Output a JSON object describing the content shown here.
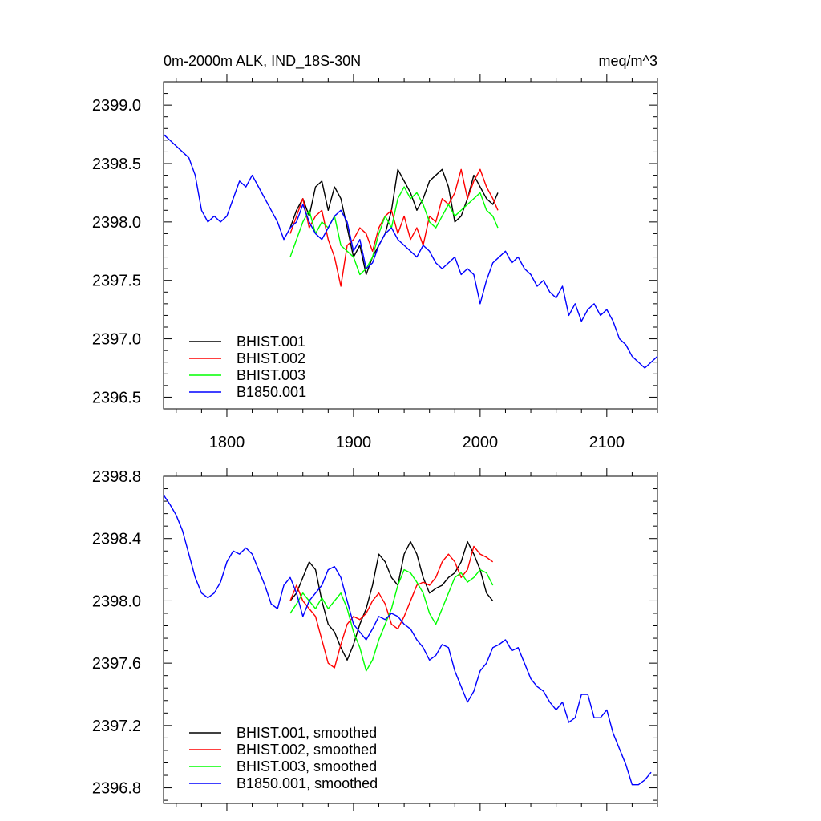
{
  "chart_data": [
    {
      "type": "line",
      "title": "0m-2000m ALK, IND_18S-30N",
      "units": "meq/m^3",
      "xlim": [
        1750,
        2140
      ],
      "ylim": [
        2396.4,
        2399.2
      ],
      "xticks": [
        1800,
        1900,
        2000,
        2100
      ],
      "xtick_labels": [
        "1800",
        "1900",
        "2000",
        "2100"
      ],
      "yticks": [
        2396.5,
        2397.0,
        2397.5,
        2398.0,
        2398.5,
        2399.0
      ],
      "ytick_labels": [
        "2396.5",
        "2397.0",
        "2397.5",
        "2398.0",
        "2398.5",
        "2399.0"
      ],
      "legend_position": "bottom-left",
      "series": [
        {
          "name": "BHIST.001",
          "color": "#000000",
          "x": [
            1850,
            1855,
            1860,
            1865,
            1870,
            1875,
            1880,
            1885,
            1890,
            1895,
            1900,
            1905,
            1910,
            1915,
            1920,
            1925,
            1930,
            1935,
            1940,
            1945,
            1950,
            1955,
            1960,
            1965,
            1970,
            1975,
            1980,
            1985,
            1990,
            1995,
            2000,
            2005,
            2010,
            2014
          ],
          "y": [
            2397.95,
            2398.1,
            2398.2,
            2398.05,
            2398.3,
            2398.35,
            2398.1,
            2398.3,
            2398.2,
            2397.95,
            2397.7,
            2397.8,
            2397.55,
            2397.7,
            2397.8,
            2397.9,
            2398.1,
            2398.45,
            2398.35,
            2398.25,
            2398.1,
            2398.2,
            2398.35,
            2398.4,
            2398.45,
            2398.3,
            2398.0,
            2398.05,
            2398.2,
            2398.4,
            2398.3,
            2398.2,
            2398.15,
            2398.25
          ]
        },
        {
          "name": "BHIST.002",
          "color": "#ff0000",
          "x": [
            1850,
            1855,
            1860,
            1865,
            1870,
            1875,
            1880,
            1885,
            1890,
            1895,
            1900,
            1905,
            1910,
            1915,
            1920,
            1925,
            1930,
            1935,
            1940,
            1945,
            1950,
            1955,
            1960,
            1965,
            1970,
            1975,
            1980,
            1985,
            1990,
            1995,
            2000,
            2005,
            2010,
            2014
          ],
          "y": [
            2397.9,
            2398.05,
            2398.2,
            2397.95,
            2398.05,
            2398.1,
            2397.85,
            2397.7,
            2397.45,
            2397.8,
            2397.85,
            2397.95,
            2397.9,
            2397.75,
            2397.95,
            2398.05,
            2398.1,
            2397.9,
            2398.05,
            2397.85,
            2397.95,
            2397.8,
            2398.05,
            2398.0,
            2398.2,
            2398.15,
            2398.25,
            2398.45,
            2398.2,
            2398.35,
            2398.45,
            2398.3,
            2398.2,
            2398.1
          ]
        },
        {
          "name": "BHIST.003",
          "color": "#00ff00",
          "x": [
            1850,
            1855,
            1860,
            1865,
            1870,
            1875,
            1880,
            1885,
            1890,
            1895,
            1900,
            1905,
            1910,
            1915,
            1920,
            1925,
            1930,
            1935,
            1940,
            1945,
            1950,
            1955,
            1960,
            1965,
            1970,
            1975,
            1980,
            1985,
            1990,
            1995,
            2000,
            2005,
            2010,
            2014
          ],
          "y": [
            2397.7,
            2397.85,
            2398.0,
            2398.1,
            2397.9,
            2398.0,
            2397.95,
            2398.05,
            2397.8,
            2397.75,
            2397.7,
            2397.55,
            2397.6,
            2397.7,
            2397.9,
            2398.05,
            2397.95,
            2398.2,
            2398.3,
            2398.2,
            2398.25,
            2398.15,
            2398.0,
            2397.95,
            2398.05,
            2398.15,
            2398.05,
            2398.1,
            2398.15,
            2398.2,
            2398.25,
            2398.1,
            2398.05,
            2397.95
          ]
        },
        {
          "name": "B1850.001",
          "color": "#0000ff",
          "x": [
            1750,
            1755,
            1760,
            1765,
            1770,
            1775,
            1780,
            1785,
            1790,
            1795,
            1800,
            1805,
            1810,
            1815,
            1820,
            1825,
            1830,
            1835,
            1840,
            1845,
            1850,
            1855,
            1860,
            1865,
            1870,
            1875,
            1880,
            1885,
            1890,
            1895,
            1900,
            1905,
            1910,
            1915,
            1920,
            1925,
            1930,
            1935,
            1940,
            1945,
            1950,
            1955,
            1960,
            1965,
            1970,
            1975,
            1980,
            1985,
            1990,
            1995,
            2000,
            2005,
            2010,
            2015,
            2020,
            2025,
            2030,
            2035,
            2040,
            2045,
            2050,
            2055,
            2060,
            2065,
            2070,
            2075,
            2080,
            2085,
            2090,
            2095,
            2100,
            2105,
            2110,
            2115,
            2120,
            2125,
            2130,
            2135,
            2140
          ],
          "y": [
            2398.75,
            2398.7,
            2398.65,
            2398.6,
            2398.55,
            2398.4,
            2398.1,
            2398.0,
            2398.05,
            2398.0,
            2398.05,
            2398.2,
            2398.35,
            2398.3,
            2398.4,
            2398.3,
            2398.2,
            2398.1,
            2398.0,
            2397.85,
            2397.95,
            2398.0,
            2398.15,
            2398.0,
            2397.9,
            2397.85,
            2397.95,
            2398.05,
            2398.1,
            2398.0,
            2397.75,
            2397.85,
            2397.6,
            2397.65,
            2397.8,
            2397.9,
            2397.95,
            2397.85,
            2397.8,
            2397.75,
            2397.7,
            2397.8,
            2397.75,
            2397.65,
            2397.6,
            2397.65,
            2397.7,
            2397.55,
            2397.6,
            2397.55,
            2397.3,
            2397.5,
            2397.65,
            2397.7,
            2397.75,
            2397.65,
            2397.7,
            2397.6,
            2397.55,
            2397.45,
            2397.5,
            2397.4,
            2397.35,
            2397.45,
            2397.2,
            2397.3,
            2397.15,
            2397.25,
            2397.3,
            2397.2,
            2397.25,
            2397.15,
            2397.0,
            2396.95,
            2396.85,
            2396.8,
            2396.75,
            2396.8,
            2396.85
          ]
        }
      ]
    },
    {
      "type": "line",
      "title": "",
      "units": "",
      "xlim": [
        1750,
        2140
      ],
      "ylim": [
        2396.7,
        2398.8
      ],
      "xticks": [
        1800,
        1900,
        2000,
        2100
      ],
      "xtick_labels": [],
      "yticks": [
        2396.8,
        2397.2,
        2397.6,
        2398.0,
        2398.4,
        2398.8
      ],
      "ytick_labels": [
        "2396.8",
        "2397.2",
        "2397.6",
        "2398.0",
        "2398.4",
        "2398.8"
      ],
      "legend_position": "bottom-left",
      "series": [
        {
          "name": "BHIST.001, smoothed",
          "color": "#000000",
          "x": [
            1850,
            1855,
            1860,
            1865,
            1870,
            1875,
            1880,
            1885,
            1890,
            1895,
            1900,
            1905,
            1910,
            1915,
            1920,
            1925,
            1930,
            1935,
            1940,
            1945,
            1950,
            1955,
            1960,
            1965,
            1970,
            1975,
            1980,
            1985,
            1990,
            1995,
            2000,
            2005,
            2010
          ],
          "y": [
            2398.0,
            2398.05,
            2398.15,
            2398.25,
            2398.2,
            2398.0,
            2397.85,
            2397.8,
            2397.7,
            2397.62,
            2397.72,
            2397.85,
            2397.95,
            2398.1,
            2398.3,
            2398.25,
            2398.15,
            2398.1,
            2398.3,
            2398.38,
            2398.3,
            2398.15,
            2398.05,
            2398.08,
            2398.1,
            2398.15,
            2398.18,
            2398.25,
            2398.38,
            2398.3,
            2398.2,
            2398.05,
            2398.0
          ]
        },
        {
          "name": "BHIST.002, smoothed",
          "color": "#ff0000",
          "x": [
            1850,
            1855,
            1860,
            1865,
            1870,
            1875,
            1880,
            1885,
            1890,
            1895,
            1900,
            1905,
            1910,
            1915,
            1920,
            1925,
            1930,
            1935,
            1940,
            1945,
            1950,
            1955,
            1960,
            1965,
            1970,
            1975,
            1980,
            1985,
            1990,
            1995,
            2000,
            2005,
            2010
          ],
          "y": [
            2398.0,
            2398.1,
            2398.0,
            2397.95,
            2397.9,
            2397.75,
            2397.6,
            2397.57,
            2397.72,
            2397.85,
            2397.9,
            2397.88,
            2397.92,
            2398.0,
            2398.05,
            2397.98,
            2397.85,
            2397.82,
            2397.9,
            2398.0,
            2398.1,
            2398.12,
            2398.1,
            2398.15,
            2398.25,
            2398.3,
            2398.25,
            2398.15,
            2398.2,
            2398.35,
            2398.3,
            2398.28,
            2398.25
          ]
        },
        {
          "name": "BHIST.003, smoothed",
          "color": "#00ff00",
          "x": [
            1850,
            1855,
            1860,
            1865,
            1870,
            1875,
            1880,
            1885,
            1890,
            1895,
            1900,
            1905,
            1910,
            1915,
            1920,
            1925,
            1930,
            1935,
            1940,
            1945,
            1950,
            1955,
            1960,
            1965,
            1970,
            1975,
            1980,
            1985,
            1990,
            1995,
            2000,
            2005,
            2010
          ],
          "y": [
            2397.92,
            2397.98,
            2398.05,
            2398.0,
            2397.95,
            2398.02,
            2397.95,
            2398.0,
            2398.05,
            2397.95,
            2397.8,
            2397.7,
            2397.55,
            2397.62,
            2397.75,
            2397.85,
            2397.95,
            2398.1,
            2398.2,
            2398.18,
            2398.12,
            2398.05,
            2397.92,
            2397.85,
            2397.95,
            2398.05,
            2398.15,
            2398.18,
            2398.12,
            2398.15,
            2398.2,
            2398.18,
            2398.1
          ]
        },
        {
          "name": "B1850.001, smoothed",
          "color": "#0000ff",
          "x": [
            1750,
            1755,
            1760,
            1765,
            1770,
            1775,
            1780,
            1785,
            1790,
            1795,
            1800,
            1805,
            1810,
            1815,
            1820,
            1825,
            1830,
            1835,
            1840,
            1845,
            1850,
            1855,
            1860,
            1865,
            1870,
            1875,
            1880,
            1885,
            1890,
            1895,
            1900,
            1905,
            1910,
            1915,
            1920,
            1925,
            1930,
            1935,
            1940,
            1945,
            1950,
            1955,
            1960,
            1965,
            1970,
            1975,
            1980,
            1985,
            1990,
            1995,
            2000,
            2005,
            2010,
            2015,
            2020,
            2025,
            2030,
            2035,
            2040,
            2045,
            2050,
            2055,
            2060,
            2065,
            2070,
            2075,
            2080,
            2085,
            2090,
            2095,
            2100,
            2105,
            2110,
            2115,
            2120,
            2125,
            2130,
            2135
          ],
          "y": [
            2398.68,
            2398.62,
            2398.55,
            2398.45,
            2398.3,
            2398.15,
            2398.05,
            2398.02,
            2398.05,
            2398.12,
            2398.25,
            2398.32,
            2398.3,
            2398.34,
            2398.3,
            2398.2,
            2398.1,
            2397.98,
            2397.95,
            2398.1,
            2398.15,
            2398.05,
            2397.9,
            2398.0,
            2398.05,
            2398.1,
            2398.2,
            2398.22,
            2398.15,
            2398.0,
            2397.85,
            2397.8,
            2397.75,
            2397.82,
            2397.9,
            2397.88,
            2397.92,
            2397.9,
            2397.85,
            2397.82,
            2397.75,
            2397.7,
            2397.62,
            2397.65,
            2397.72,
            2397.7,
            2397.55,
            2397.45,
            2397.35,
            2397.42,
            2397.55,
            2397.6,
            2397.7,
            2397.72,
            2397.75,
            2397.68,
            2397.7,
            2397.6,
            2397.5,
            2397.45,
            2397.42,
            2397.35,
            2397.3,
            2397.35,
            2397.22,
            2397.25,
            2397.4,
            2397.4,
            2397.25,
            2397.25,
            2397.3,
            2397.15,
            2397.05,
            2396.95,
            2396.82,
            2396.82,
            2396.85,
            2396.9
          ]
        }
      ]
    }
  ]
}
